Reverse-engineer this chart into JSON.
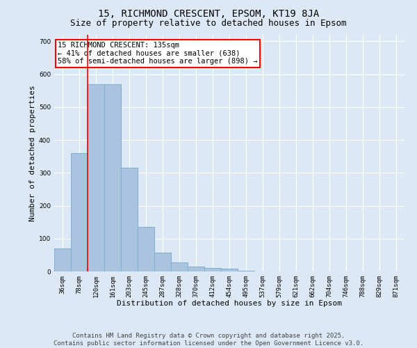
{
  "title1": "15, RICHMOND CRESCENT, EPSOM, KT19 8JA",
  "title2": "Size of property relative to detached houses in Epsom",
  "xlabel": "Distribution of detached houses by size in Epsom",
  "ylabel": "Number of detached properties",
  "categories": [
    "36sqm",
    "78sqm",
    "120sqm",
    "161sqm",
    "203sqm",
    "245sqm",
    "287sqm",
    "328sqm",
    "370sqm",
    "412sqm",
    "454sqm",
    "495sqm",
    "537sqm",
    "579sqm",
    "621sqm",
    "662sqm",
    "704sqm",
    "746sqm",
    "788sqm",
    "829sqm",
    "871sqm"
  ],
  "values": [
    70,
    360,
    570,
    570,
    315,
    135,
    57,
    27,
    15,
    10,
    9,
    3,
    1,
    0,
    0,
    0,
    0,
    0,
    0,
    0,
    0
  ],
  "bar_color": "#aac4e0",
  "bar_edgecolor": "#7aafd4",
  "vline_color": "red",
  "vline_x": 2,
  "annotation_text": "15 RICHMOND CRESCENT: 135sqm\n← 41% of detached houses are smaller (638)\n58% of semi-detached houses are larger (898) →",
  "annotation_box_facecolor": "white",
  "annotation_box_edgecolor": "red",
  "ylim": [
    0,
    720
  ],
  "yticks": [
    0,
    100,
    200,
    300,
    400,
    500,
    600,
    700
  ],
  "footer1": "Contains HM Land Registry data © Crown copyright and database right 2025.",
  "footer2": "Contains public sector information licensed under the Open Government Licence v3.0.",
  "bg_color": "#dce8f5",
  "title1_fontsize": 10,
  "title2_fontsize": 9,
  "axis_label_fontsize": 8,
  "tick_fontsize": 6.5,
  "annotation_fontsize": 7.5,
  "footer_fontsize": 6.5
}
